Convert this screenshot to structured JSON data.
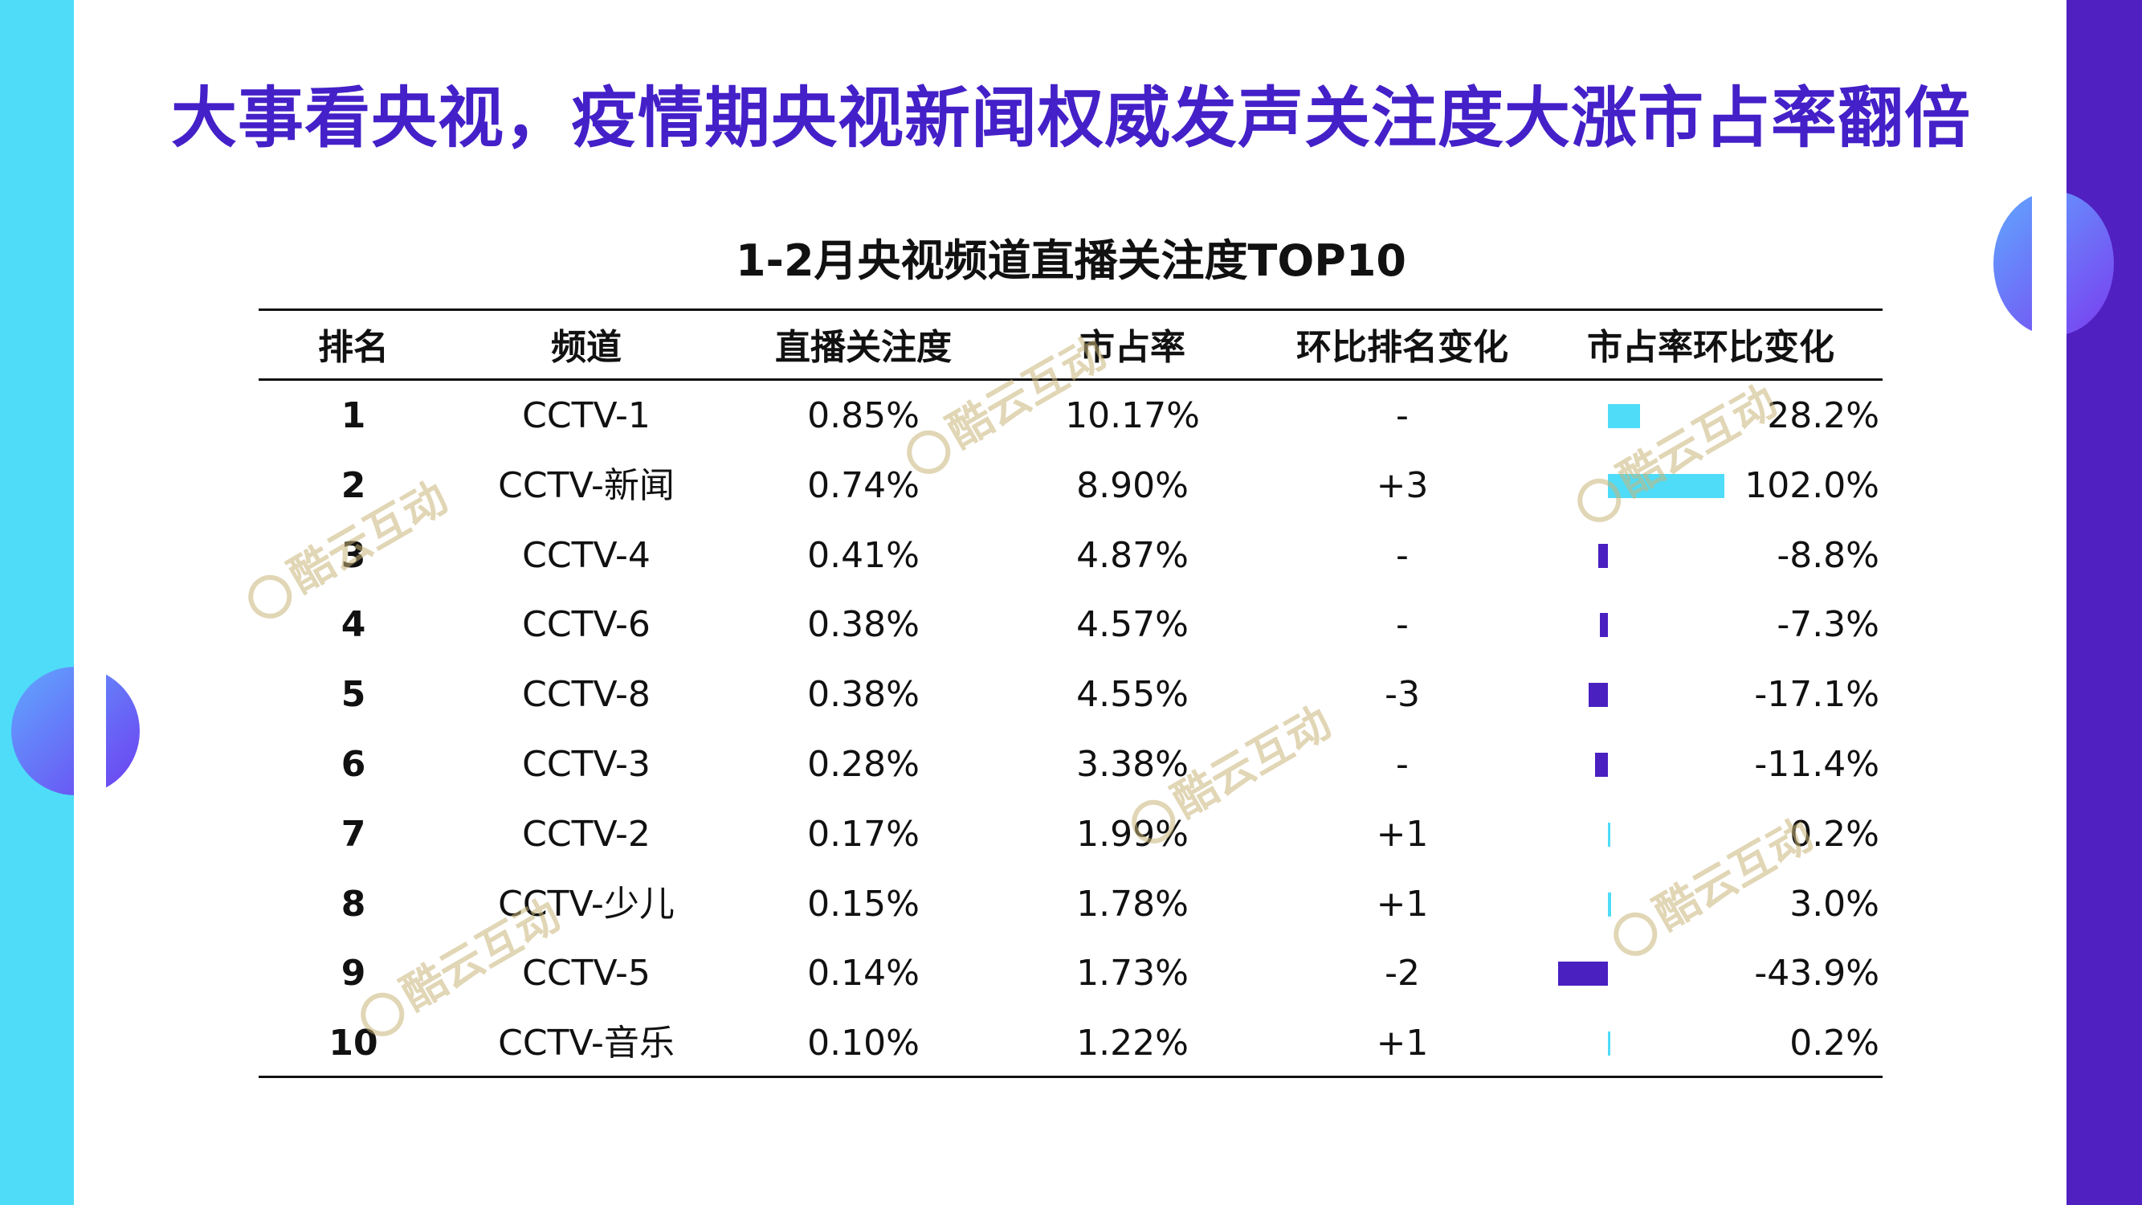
{
  "title": "大事看央视，疫情期央视新闻权威发声关注度大涨市占率翻倍",
  "colors": {
    "accent": "#4420c8",
    "positive": "#4fdcf8",
    "negative": "#4a20c0"
  },
  "watermark": "酷云互动",
  "chart_data": {
    "type": "table",
    "title": "1-2月央视频道直播关注度TOP10",
    "columns": [
      "排名",
      "频道",
      "直播关注度",
      "市占率",
      "环比排名变化",
      "市占率环比变化"
    ],
    "rows": [
      {
        "rank": "1",
        "channel": "CCTV-1",
        "attention": "0.85%",
        "share": "10.17%",
        "rank_change": "-",
        "share_change": 28.2,
        "share_change_label": "28.2%"
      },
      {
        "rank": "2",
        "channel": "CCTV-新闻",
        "attention": "0.74%",
        "share": "8.90%",
        "rank_change": "+3",
        "share_change": 102.0,
        "share_change_label": "102.0%"
      },
      {
        "rank": "3",
        "channel": "CCTV-4",
        "attention": "0.41%",
        "share": "4.87%",
        "rank_change": "-",
        "share_change": -8.8,
        "share_change_label": "-8.8%"
      },
      {
        "rank": "4",
        "channel": "CCTV-6",
        "attention": "0.38%",
        "share": "4.57%",
        "rank_change": "-",
        "share_change": -7.3,
        "share_change_label": "-7.3%"
      },
      {
        "rank": "5",
        "channel": "CCTV-8",
        "attention": "0.38%",
        "share": "4.55%",
        "rank_change": "-3",
        "share_change": -17.1,
        "share_change_label": "-17.1%"
      },
      {
        "rank": "6",
        "channel": "CCTV-3",
        "attention": "0.28%",
        "share": "3.38%",
        "rank_change": "-",
        "share_change": -11.4,
        "share_change_label": "-11.4%"
      },
      {
        "rank": "7",
        "channel": "CCTV-2",
        "attention": "0.17%",
        "share": "1.99%",
        "rank_change": "+1",
        "share_change": 0.2,
        "share_change_label": "0.2%"
      },
      {
        "rank": "8",
        "channel": "CCTV-少儿",
        "attention": "0.15%",
        "share": "1.78%",
        "rank_change": "+1",
        "share_change": 3.0,
        "share_change_label": "3.0%"
      },
      {
        "rank": "9",
        "channel": "CCTV-5",
        "attention": "0.14%",
        "share": "1.73%",
        "rank_change": "-2",
        "share_change": -43.9,
        "share_change_label": "-43.9%"
      },
      {
        "rank": "10",
        "channel": "CCTV-音乐",
        "attention": "0.10%",
        "share": "1.22%",
        "rank_change": "+1",
        "share_change": 0.2,
        "share_change_label": "0.2%"
      }
    ]
  }
}
